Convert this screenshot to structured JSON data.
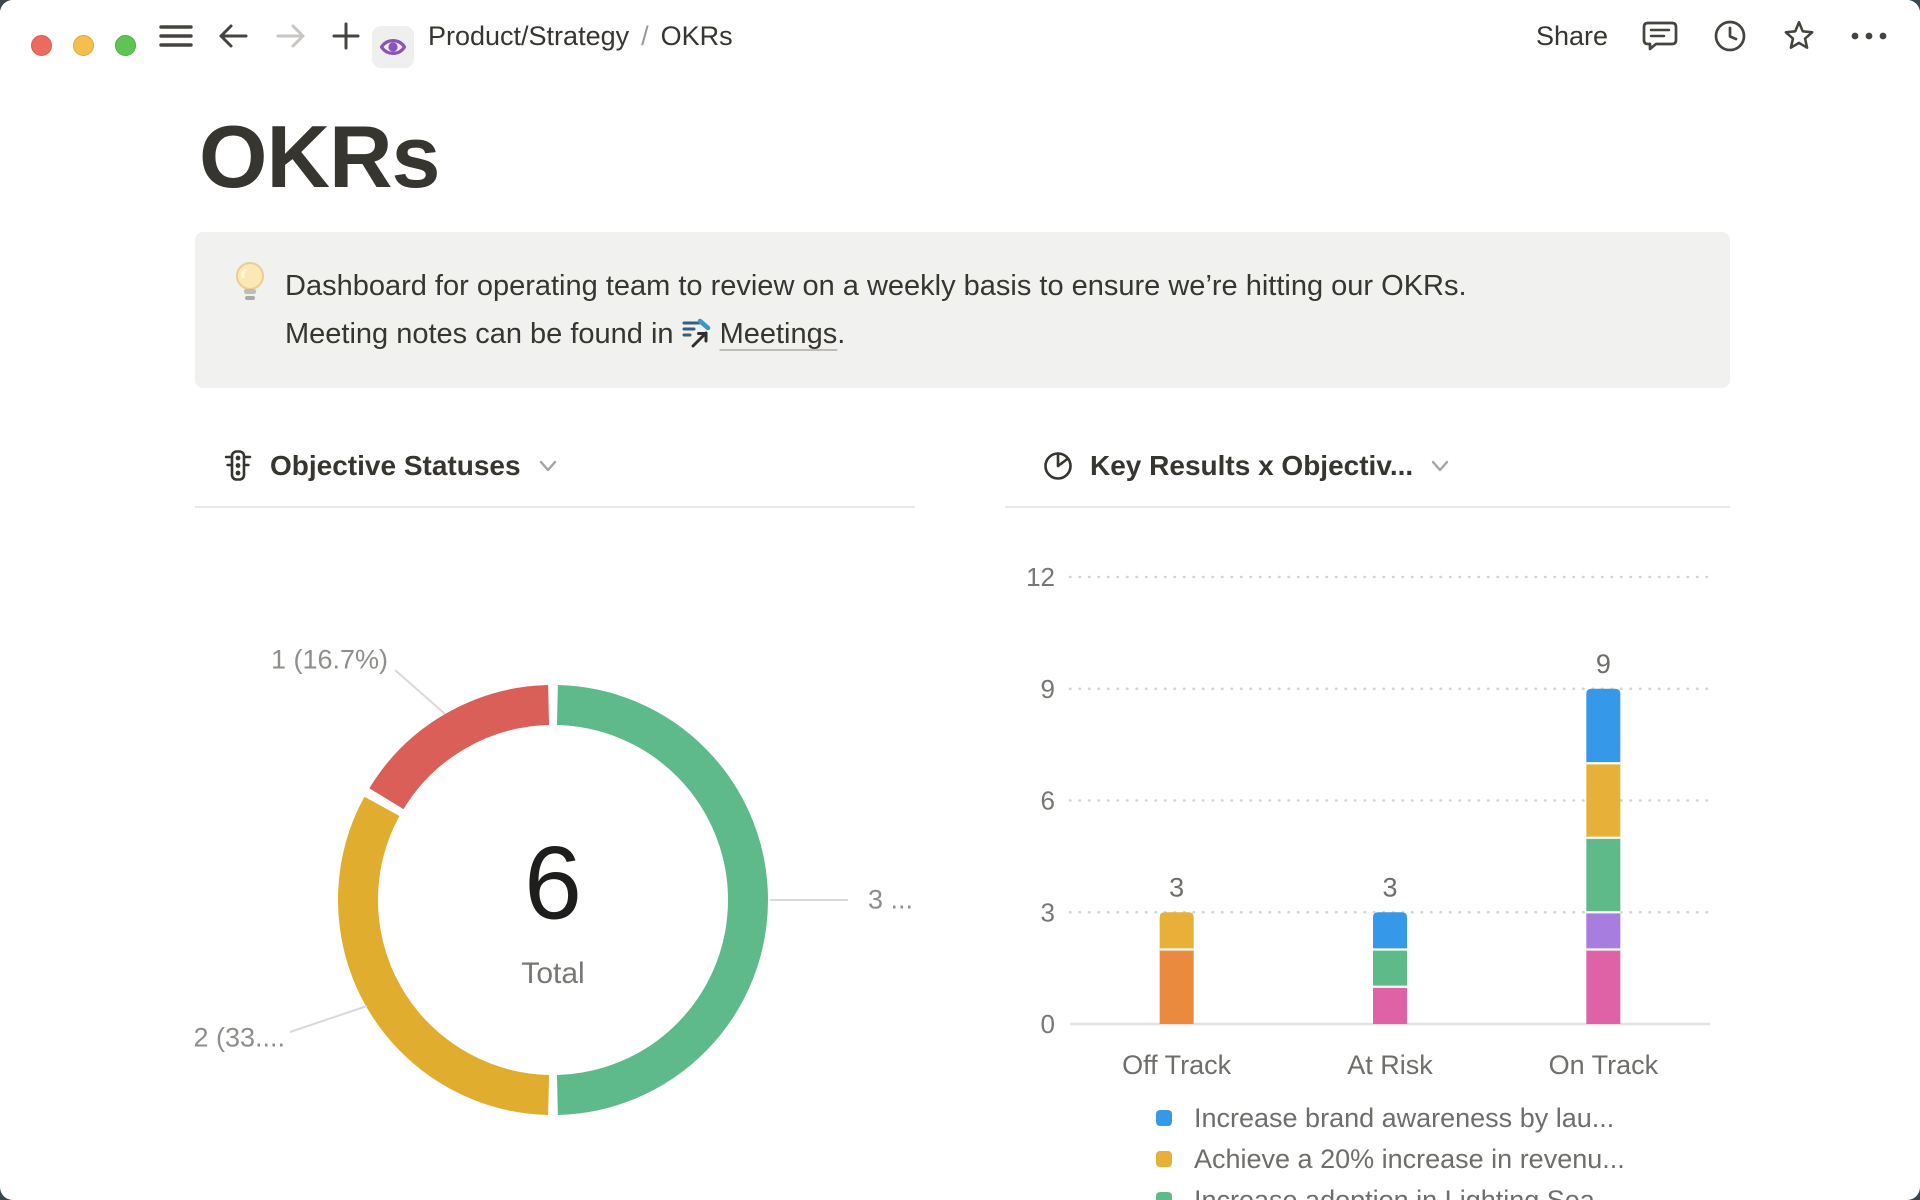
{
  "titlebar": {
    "breadcrumb": {
      "parent": "Product/Strategy",
      "separator": "/",
      "current": "OKRs"
    },
    "share_label": "Share"
  },
  "page": {
    "title": "OKRs",
    "callout": {
      "emoji_name": "lightbulb",
      "line1": "Dashboard for operating team to review on a weekly basis to ensure we’re hitting our OKRs.",
      "line2_prefix": "Meeting notes can be found in",
      "link_label": "Meetings",
      "line2_suffix": "."
    }
  },
  "icons": {
    "toolbar": [
      "hamburger",
      "back-arrow",
      "forward-arrow",
      "plus",
      "page-eye",
      "comments",
      "history-clock",
      "favorite-star",
      "more-ellipsis"
    ],
    "left_chart_icon": "traffic-light",
    "right_chart_icon": "pie-chart",
    "meetings_link_icon": "meeting-notes-page"
  },
  "colors": {
    "accent_purple": "#8A55B8",
    "callout_bg": "#F1F1EF",
    "text": "#37352F",
    "muted": "#787774"
  },
  "chart_data": [
    {
      "type": "pie",
      "donut": true,
      "title": "Objective Statuses",
      "center_value": "6",
      "center_label": "Total",
      "slices": [
        {
          "label": "3 ...",
          "value": 3,
          "color": "#5EBA8B"
        },
        {
          "label": "2 (33....",
          "value": 2,
          "color": "#E1AD2F"
        },
        {
          "label": "1 (16.7%)",
          "value": 1,
          "color": "#D95F58"
        }
      ]
    },
    {
      "type": "bar",
      "stacked": true,
      "title": "Key Results x Objectiv...",
      "categories": [
        "Off Track",
        "At Risk",
        "On Track"
      ],
      "yticks": [
        0,
        3,
        6,
        9,
        12
      ],
      "ylim": [
        0,
        12
      ],
      "grid": "dotted-horizontal",
      "legend_position": "bottom",
      "bars": [
        {
          "category": "Off Track",
          "total": 3,
          "segments": [
            {
              "color": "#EA8A3E",
              "value": 2
            },
            {
              "color": "#E6B039",
              "value": 1
            }
          ]
        },
        {
          "category": "At Risk",
          "total": 3,
          "segments": [
            {
              "color": "#DE62A5",
              "value": 1
            },
            {
              "color": "#5FBA8A",
              "value": 1
            },
            {
              "color": "#3598E8",
              "value": 1
            }
          ]
        },
        {
          "category": "On Track",
          "total": 9,
          "segments": [
            {
              "color": "#DE62A5",
              "value": 2
            },
            {
              "color": "#A87DE0",
              "value": 1
            },
            {
              "color": "#5FBA8A",
              "value": 2
            },
            {
              "color": "#E6B039",
              "value": 2
            },
            {
              "color": "#3598E8",
              "value": 2
            }
          ]
        }
      ],
      "legend": [
        {
          "color": "#3598E8",
          "label": "Increase brand awareness by lau..."
        },
        {
          "color": "#E6B039",
          "label": "Achieve a 20% increase in revenu..."
        },
        {
          "color": "#5FBA8A",
          "label": "Increase adoption in Lighting Sea..."
        }
      ]
    }
  ]
}
